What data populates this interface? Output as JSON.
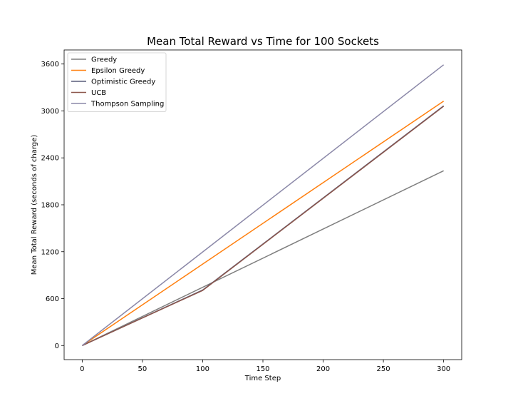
{
  "chart_data": {
    "type": "line",
    "title": "Mean Total Reward vs Time for 100 Sockets",
    "xlabel": "Time Step",
    "ylabel": "Mean Total Reward (seconds of charge)",
    "xlim": [
      -15,
      315
    ],
    "ylim": [
      -180,
      3780
    ],
    "xticks": [
      0,
      50,
      100,
      150,
      200,
      250,
      300
    ],
    "yticks": [
      0,
      600,
      1200,
      1800,
      2400,
      3000,
      3600
    ],
    "grid": false,
    "legend_position": "top-left",
    "series": [
      {
        "name": "Greedy",
        "color": "#7f7f7f",
        "x": [
          0,
          300
        ],
        "y": [
          0,
          2235
        ]
      },
      {
        "name": "Epsilon Greedy",
        "color": "#ff7f0e",
        "x": [
          0,
          300
        ],
        "y": [
          0,
          3125
        ]
      },
      {
        "name": "Optimistic Greedy",
        "color": "#595c7a",
        "x": [
          0,
          100,
          300
        ],
        "y": [
          0,
          710,
          3065
        ]
      },
      {
        "name": "UCB",
        "color": "#8c564b",
        "x": [
          0,
          100,
          300
        ],
        "y": [
          0,
          705,
          3060
        ]
      },
      {
        "name": "Thompson Sampling",
        "color": "#8b88a8",
        "x": [
          0,
          300
        ],
        "y": [
          0,
          3590
        ]
      }
    ]
  }
}
